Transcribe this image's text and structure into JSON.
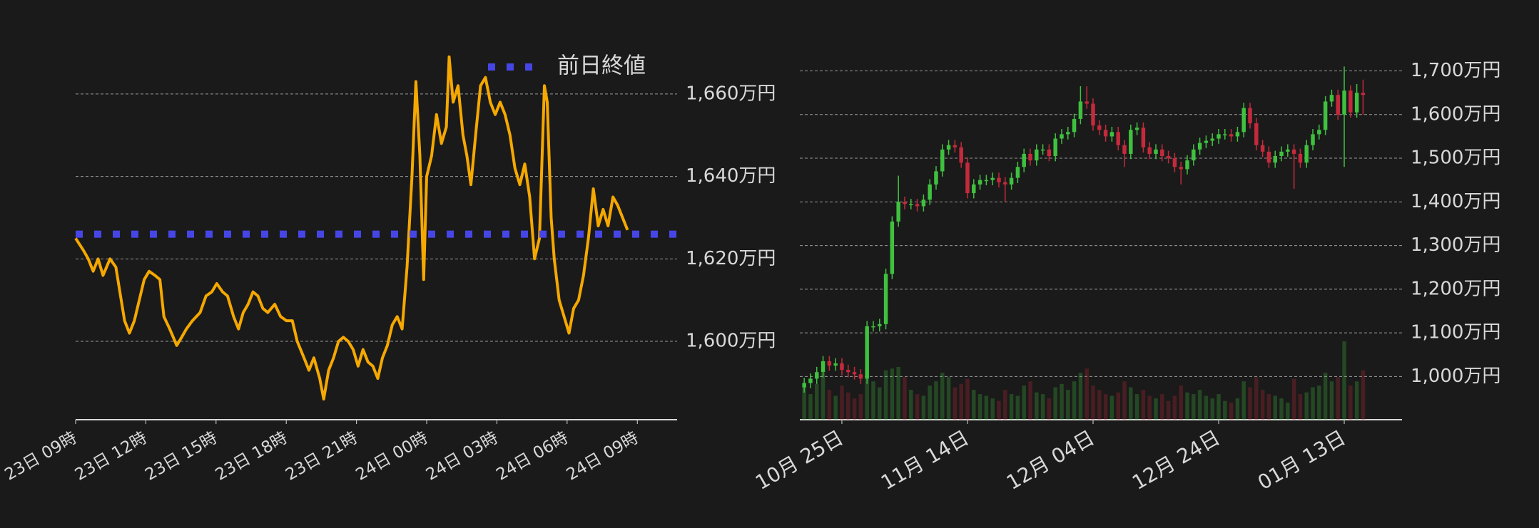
{
  "chart_data": [
    {
      "type": "line",
      "color": "#f5a800",
      "x": [
        0,
        0.34,
        0.54,
        0.75,
        0.96,
        1.17,
        1.47,
        1.72,
        1.89,
        2.09,
        2.3,
        2.51,
        2.72,
        2.93,
        3.14,
        3.39,
        3.6,
        3.77,
        4.02,
        4.32,
        4.53,
        4.73,
        4.99,
        5.32,
        5.57,
        5.82,
        6.03,
        6.28,
        6.49,
        6.75,
        6.96,
        7.16,
        7.37,
        7.58,
        7.79,
        8.0,
        8.21,
        8.51,
        8.76,
        9.01,
        9.26,
        9.47,
        9.76,
        9.97,
        10.18,
        10.43,
        10.6,
        10.81,
        11.02,
        11.23,
        11.44,
        11.65,
        11.86,
        12.07,
        12.28,
        12.49,
        12.7,
        12.91,
        13.11,
        13.32,
        13.53,
        13.74,
        13.95,
        14.16,
        14.37,
        14.54,
        14.71,
        14.87,
        15.0,
        15.21,
        15.42,
        15.63,
        15.84,
        15.96,
        16.13,
        16.34,
        16.55,
        16.72,
        16.89,
        17.09,
        17.3,
        17.51,
        17.72,
        17.93,
        18.14,
        18.35,
        18.56,
        18.77,
        18.98,
        19.19,
        19.4,
        19.61,
        19.82,
        20.03,
        20.15,
        20.32,
        20.45,
        20.66,
        20.87,
        21.08,
        21.28,
        21.49,
        21.7,
        21.91,
        22.12,
        22.33,
        22.54,
        22.75,
        22.96,
        23.16,
        23.37,
        23.58
      ],
      "values": [
        1625,
        1622,
        1620,
        1617,
        1620,
        1616,
        1620,
        1618,
        1612,
        1605,
        1602,
        1605,
        1610,
        1615,
        1617,
        1616,
        1615,
        1606,
        1603,
        1599,
        1601,
        1603,
        1605,
        1607,
        1611,
        1612,
        1614,
        1612,
        1611,
        1606,
        1603,
        1607,
        1609,
        1612,
        1611,
        1608,
        1607,
        1609,
        1606,
        1605,
        1605,
        1600,
        1596,
        1593,
        1596,
        1591,
        1586,
        1593,
        1596,
        1600,
        1601,
        1600,
        1598,
        1594,
        1598,
        1595,
        1594,
        1591,
        1596,
        1599,
        1604,
        1606,
        1603,
        1618,
        1640,
        1663,
        1645,
        1615,
        1640,
        1645,
        1655,
        1648,
        1652,
        1669,
        1658,
        1662,
        1650,
        1645,
        1638,
        1650,
        1662,
        1664,
        1658,
        1655,
        1658,
        1655,
        1650,
        1642,
        1638,
        1643,
        1635,
        1620,
        1625,
        1662,
        1658,
        1630,
        1620,
        1610,
        1606,
        1602,
        1608,
        1610,
        1616,
        1625,
        1637,
        1628,
        1632,
        1628,
        1635,
        1633,
        1630,
        1627
      ],
      "ref_line": {
        "name": "前日終値",
        "value": 1626,
        "color": "#4646e6"
      },
      "legend": "upper right",
      "xlim": [
        0,
        25.7
      ],
      "xticks": [
        {
          "value": 0,
          "label": "23日 09時"
        },
        {
          "value": 3,
          "label": "23日 12時"
        },
        {
          "value": 6,
          "label": "23日 15時"
        },
        {
          "value": 9,
          "label": "23日 18時"
        },
        {
          "value": 12,
          "label": "23日 21時"
        },
        {
          "value": 15,
          "label": "24日 00時"
        },
        {
          "value": 18,
          "label": "24日 03時"
        },
        {
          "value": 21,
          "label": "24日 06時"
        },
        {
          "value": 24,
          "label": "24日 09時"
        }
      ],
      "ylim": [
        1581,
        1670
      ],
      "yticks": [
        {
          "value": 1600,
          "label": "1,600万円"
        },
        {
          "value": 1620,
          "label": "1,620万円"
        },
        {
          "value": 1640,
          "label": "1,640万円"
        },
        {
          "value": 1660,
          "label": "1,660万円"
        }
      ],
      "grid": true
    },
    {
      "type": "candlestick",
      "up_color": "#3fc13f",
      "down_color": "#c42a3c",
      "x": [
        -6,
        -5,
        -4,
        -3,
        -2,
        -1,
        0,
        1,
        2,
        3,
        4,
        5,
        6,
        7,
        8,
        9,
        10,
        11,
        12,
        13,
        14,
        15,
        16,
        17,
        18,
        19,
        20,
        21,
        22,
        23,
        24,
        25,
        26,
        27,
        28,
        29,
        30,
        31,
        32,
        33,
        34,
        35,
        36,
        37,
        38,
        39,
        40,
        41,
        42,
        43,
        44,
        45,
        46,
        47,
        48,
        49,
        50,
        51,
        52,
        53,
        54,
        55,
        56,
        57,
        58,
        59,
        60,
        61,
        62,
        63,
        64,
        65,
        66,
        67,
        68,
        69,
        70,
        71,
        72,
        73,
        74,
        75,
        76,
        77,
        78,
        79,
        80,
        81,
        82,
        83
      ],
      "open": [
        975,
        985,
        995,
        1010,
        1035,
        1025,
        1030,
        1015,
        1010,
        1005,
        995,
        1115,
        1115,
        1120,
        1235,
        1355,
        1400,
        1395,
        1395,
        1390,
        1405,
        1440,
        1470,
        1520,
        1530,
        1525,
        1490,
        1420,
        1440,
        1450,
        1450,
        1455,
        1445,
        1440,
        1455,
        1480,
        1510,
        1495,
        1520,
        1520,
        1505,
        1545,
        1555,
        1560,
        1590,
        1630,
        1625,
        1575,
        1565,
        1550,
        1560,
        1530,
        1510,
        1565,
        1570,
        1525,
        1510,
        1520,
        1505,
        1500,
        1480,
        1475,
        1495,
        1520,
        1535,
        1540,
        1545,
        1555,
        1555,
        1550,
        1560,
        1615,
        1580,
        1530,
        1515,
        1490,
        1505,
        1515,
        1520,
        1510,
        1490,
        1530,
        1555,
        1565,
        1630,
        1645,
        1600,
        1655,
        1605,
        1650
      ],
      "high": [
        997,
        1007,
        1022,
        1047,
        1047,
        1042,
        1042,
        1027,
        1022,
        1017,
        1127,
        1127,
        1132,
        1247,
        1367,
        1460,
        1412,
        1407,
        1407,
        1417,
        1452,
        1482,
        1532,
        1542,
        1542,
        1537,
        1502,
        1452,
        1462,
        1462,
        1467,
        1467,
        1457,
        1467,
        1492,
        1522,
        1522,
        1532,
        1532,
        1532,
        1557,
        1567,
        1572,
        1602,
        1665,
        1665,
        1637,
        1587,
        1577,
        1572,
        1572,
        1542,
        1577,
        1582,
        1582,
        1537,
        1532,
        1532,
        1517,
        1512,
        1492,
        1507,
        1532,
        1547,
        1552,
        1557,
        1567,
        1567,
        1567,
        1572,
        1627,
        1627,
        1592,
        1542,
        1527,
        1517,
        1527,
        1532,
        1532,
        1522,
        1542,
        1567,
        1577,
        1642,
        1657,
        1657,
        1710,
        1667,
        1670,
        1680
      ],
      "low": [
        963,
        973,
        983,
        998,
        1013,
        1013,
        1003,
        998,
        993,
        983,
        983,
        1103,
        1103,
        1108,
        1223,
        1343,
        1383,
        1383,
        1378,
        1378,
        1393,
        1428,
        1458,
        1508,
        1513,
        1478,
        1408,
        1408,
        1428,
        1438,
        1438,
        1433,
        1400,
        1428,
        1443,
        1468,
        1483,
        1483,
        1508,
        1493,
        1493,
        1533,
        1543,
        1548,
        1578,
        1613,
        1563,
        1553,
        1538,
        1538,
        1518,
        1480,
        1498,
        1553,
        1513,
        1498,
        1498,
        1493,
        1488,
        1468,
        1440,
        1463,
        1483,
        1508,
        1523,
        1528,
        1533,
        1543,
        1538,
        1538,
        1548,
        1568,
        1518,
        1503,
        1478,
        1478,
        1493,
        1503,
        1430,
        1478,
        1478,
        1518,
        1543,
        1553,
        1618,
        1588,
        1480,
        1593,
        1593,
        1600
      ],
      "close": [
        985,
        995,
        1010,
        1035,
        1025,
        1030,
        1015,
        1010,
        1005,
        995,
        1115,
        1115,
        1120,
        1235,
        1355,
        1400,
        1395,
        1395,
        1390,
        1405,
        1440,
        1470,
        1520,
        1530,
        1525,
        1490,
        1420,
        1440,
        1450,
        1450,
        1455,
        1445,
        1440,
        1455,
        1480,
        1510,
        1495,
        1520,
        1520,
        1505,
        1545,
        1555,
        1560,
        1590,
        1630,
        1625,
        1575,
        1565,
        1550,
        1560,
        1530,
        1510,
        1565,
        1570,
        1525,
        1510,
        1520,
        1505,
        1500,
        1480,
        1475,
        1495,
        1520,
        1535,
        1540,
        1545,
        1555,
        1555,
        1550,
        1560,
        1615,
        1580,
        1530,
        1515,
        1490,
        1505,
        1515,
        1520,
        1510,
        1490,
        1530,
        1555,
        1565,
        1630,
        1645,
        1600,
        1655,
        1605,
        1650,
        1645
      ],
      "volume": [
        38,
        30,
        42,
        55,
        35,
        28,
        40,
        32,
        25,
        30,
        62,
        45,
        38,
        58,
        60,
        62,
        50,
        35,
        30,
        28,
        40,
        45,
        55,
        50,
        38,
        42,
        48,
        35,
        30,
        28,
        25,
        22,
        35,
        30,
        28,
        40,
        45,
        32,
        30,
        25,
        38,
        42,
        35,
        45,
        55,
        60,
        40,
        35,
        30,
        28,
        32,
        45,
        38,
        30,
        35,
        28,
        25,
        30,
        22,
        28,
        40,
        32,
        30,
        35,
        28,
        25,
        30,
        22,
        20,
        25,
        45,
        38,
        50,
        35,
        30,
        28,
        25,
        20,
        48,
        30,
        32,
        38,
        40,
        55,
        45,
        50,
        92,
        40,
        45,
        58
      ],
      "xlim": [
        -6.7,
        89.2
      ],
      "xticks": [
        {
          "value": 0,
          "label": "10月 25日"
        },
        {
          "value": 20,
          "label": "11月 14日"
        },
        {
          "value": 40,
          "label": "12月 04日"
        },
        {
          "value": 60,
          "label": "12月 24日"
        },
        {
          "value": 80,
          "label": "01月 13日"
        }
      ],
      "ylim": [
        901,
        1727
      ],
      "yticks": [
        {
          "value": 1000,
          "label": "1,000万円"
        },
        {
          "value": 1100,
          "label": "1,100万円"
        },
        {
          "value": 1200,
          "label": "1,200万円"
        },
        {
          "value": 1300,
          "label": "1,300万円"
        },
        {
          "value": 1400,
          "label": "1,400万円"
        },
        {
          "value": 1500,
          "label": "1,500万円"
        },
        {
          "value": 1600,
          "label": "1,600万円"
        },
        {
          "value": 1700,
          "label": "1,700万円"
        }
      ],
      "grid": true
    }
  ]
}
